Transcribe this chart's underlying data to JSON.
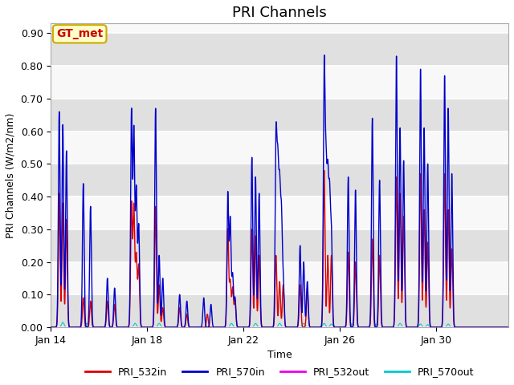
{
  "title": "PRI Channels",
  "xlabel": "Time",
  "ylabel": "PRI Channels (W/m2/nm)",
  "ylim": [
    0.0,
    0.93
  ],
  "yticks": [
    0.0,
    0.1,
    0.2,
    0.3,
    0.4,
    0.5,
    0.6,
    0.7,
    0.8,
    0.9
  ],
  "annotation_text": "GT_met",
  "annotation_color": "#cc0000",
  "annotation_bg": "#ffffcc",
  "annotation_border": "#ccaa00",
  "background_color": "#f0f0f0",
  "band_light": "#f8f8f8",
  "band_dark": "#e0e0e0",
  "grid_color": "#ffffff",
  "series": {
    "PRI_532in": {
      "color": "#dd0000",
      "lw": 1.0,
      "zorder": 3
    },
    "PRI_570in": {
      "color": "#0000cc",
      "lw": 1.0,
      "zorder": 4
    },
    "PRI_532out": {
      "color": "#ee00ee",
      "lw": 0.8,
      "zorder": 2
    },
    "PRI_570out": {
      "color": "#00cccc",
      "lw": 0.8,
      "zorder": 1
    }
  },
  "xaxis_dates": [
    "Jan 14",
    "Jan 18",
    "Jan 22",
    "Jan 26",
    "Jan 30"
  ],
  "xtick_days": [
    0,
    4,
    8,
    12,
    16
  ],
  "n_days": 19,
  "title_fontsize": 13,
  "label_fontsize": 9,
  "tick_fontsize": 9,
  "day_spikes_570in": [
    [
      0.66,
      0.62,
      0.54
    ],
    [
      0.44,
      0.37
    ],
    [
      0.15,
      0.12
    ],
    [
      0.66,
      0.6,
      0.42,
      0.31
    ],
    [
      0.67,
      0.22,
      0.15
    ],
    [
      0.1,
      0.08
    ],
    [
      0.09,
      0.07
    ],
    [
      0.41,
      0.33,
      0.16,
      0.09
    ],
    [
      0.52,
      0.46,
      0.41
    ],
    [
      0.57,
      0.46,
      0.4,
      0.33,
      0.14
    ],
    [
      0.25,
      0.2,
      0.14
    ],
    [
      0.78,
      0.45,
      0.43,
      0.38,
      0.28
    ],
    [
      0.46,
      0.42
    ],
    [
      0.64,
      0.45
    ],
    [
      0.83,
      0.61,
      0.51
    ],
    [
      0.79,
      0.61,
      0.5
    ],
    [
      0.77,
      0.67,
      0.47
    ],
    [],
    []
  ],
  "day_spikes_532in": [
    [
      0.41,
      0.38,
      0.33
    ],
    [
      0.09,
      0.08
    ],
    [
      0.08,
      0.07
    ],
    [
      0.38,
      0.37,
      0.22,
      0.19
    ],
    [
      0.37,
      0.13,
      0.06
    ],
    [
      0.06,
      0.04
    ],
    [
      0.04
    ],
    [
      0.3,
      0.14,
      0.12,
      0.08
    ],
    [
      0.3,
      0.28,
      0.22
    ],
    [
      0.22,
      0.14,
      0.13
    ],
    [
      0.13,
      0.12
    ],
    [
      0.48,
      0.22,
      0.22
    ],
    [
      0.23,
      0.2
    ],
    [
      0.27,
      0.22
    ],
    [
      0.46,
      0.41,
      0.34
    ],
    [
      0.47,
      0.36,
      0.26
    ],
    [
      0.47,
      0.36,
      0.24
    ],
    [],
    []
  ],
  "day_spikes_570out": [
    [
      0.015
    ],
    [
      0.012
    ],
    [],
    [
      0.012
    ],
    [
      0.012
    ],
    [],
    [],
    [
      0.012
    ],
    [
      0.012
    ],
    [
      0.012
    ],
    [
      0.012
    ],
    [
      0.012,
      0.01
    ],
    [
      0.01
    ],
    [
      0.01
    ],
    [
      0.012
    ],
    [
      0.01,
      0.008
    ],
    [
      0.01
    ],
    [],
    []
  ]
}
